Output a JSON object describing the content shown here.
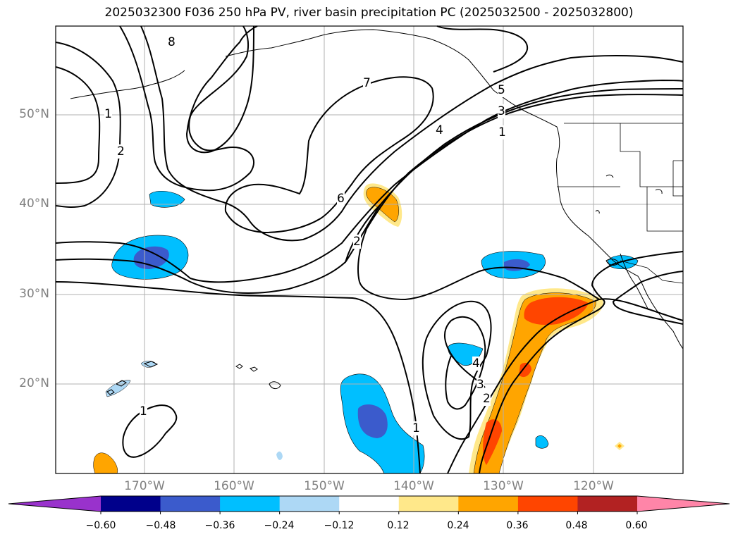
{
  "title": "2025032300 F036 250 hPa PV, river basin precipitation PC (2025032500 - 2025032800)",
  "map": {
    "lat_labels": [
      "50°N",
      "40°N",
      "30°N",
      "20°N"
    ],
    "lon_labels": [
      "170°W",
      "160°W",
      "150°W",
      "140°W",
      "130°W",
      "120°W"
    ],
    "contour_labels": [
      "8",
      "7",
      "1",
      "2",
      "6",
      "2",
      "5",
      "3",
      "4",
      "1",
      "4",
      "3",
      "2",
      "1",
      "1"
    ]
  },
  "colorbar": {
    "tick_labels": [
      "−0.60",
      "−0.48",
      "−0.36",
      "−0.24",
      "−0.12",
      "0.12",
      "0.24",
      "0.36",
      "0.48",
      "0.60"
    ],
    "colors": [
      "#9932cc",
      "#00008b",
      "#3b5bcc",
      "#00bfff",
      "#add8f5",
      "#ffffff",
      "#ffe88a",
      "#ffa500",
      "#ff4500",
      "#b22222",
      "#ff85a8"
    ]
  }
}
